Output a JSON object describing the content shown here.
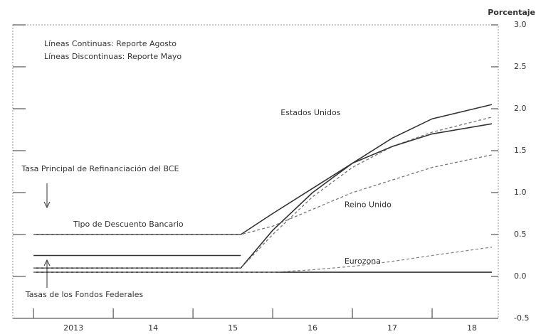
{
  "chart_data": {
    "type": "line",
    "axis_label": "Porcentaje",
    "notes": [
      "Líneas Continuas: Reporte Agosto",
      "Líneas Discontinuas: Reporte Mayo"
    ],
    "annotations": [
      {
        "text": "Estados Unidos",
        "x": 2016.1,
        "y": 1.95
      },
      {
        "text": "Reino Unido",
        "x": 2016.9,
        "y": 0.85
      },
      {
        "text": "Eurozona",
        "x": 2016.9,
        "y": 0.18
      },
      {
        "text": "Tasa Principal de Refinanciación del BCE",
        "x": 2012.85,
        "y": 1.28
      },
      {
        "text": "Tipo de Descuento Bancario",
        "x": 2013.5,
        "y": 0.62
      },
      {
        "text": "Tasas de los Fondos Federales",
        "x": 2012.9,
        "y": -0.22
      }
    ],
    "x": [
      2013,
      2015.6,
      2016,
      2016.5,
      2017,
      2017.5,
      2018,
      2018.75
    ],
    "series": [
      {
        "style": "solid",
        "color": "#333333",
        "values": [
          0.1,
          0.1,
          0.55,
          1.0,
          1.35,
          1.65,
          1.88,
          2.05
        ]
      },
      {
        "style": "dashed",
        "color": "#777777",
        "values": [
          0.1,
          0.1,
          0.5,
          0.95,
          1.3,
          1.55,
          1.72,
          1.9
        ]
      },
      {
        "style": "solid",
        "color": "#333333",
        "values": [
          0.5,
          0.5,
          0.75,
          1.05,
          1.35,
          1.55,
          1.7,
          1.82
        ]
      },
      {
        "style": "dashed",
        "color": "#777777",
        "values": [
          0.5,
          0.5,
          0.6,
          0.8,
          1.0,
          1.15,
          1.3,
          1.45
        ]
      },
      {
        "style": "solid",
        "color": "#333333",
        "values": [
          0.25,
          0.25,
          null,
          null,
          null,
          null,
          null,
          null
        ]
      },
      {
        "style": "solid",
        "color": "#333333",
        "values": [
          0.05,
          0.05,
          0.05,
          0.05,
          0.05,
          0.05,
          0.05,
          0.05
        ]
      },
      {
        "style": "dashed",
        "color": "#888888",
        "values": [
          0.05,
          0.05,
          0.05,
          0.08,
          0.12,
          0.18,
          0.25,
          0.35
        ]
      }
    ],
    "xlim": [
      2012.74,
      2018.83
    ],
    "xticks": [
      {
        "value": 2013.5,
        "label": "2013"
      },
      {
        "value": 2014.5,
        "label": "14"
      },
      {
        "value": 2015.5,
        "label": "15"
      },
      {
        "value": 2016.5,
        "label": "16"
      },
      {
        "value": 2017.5,
        "label": "17"
      },
      {
        "value": 2018.5,
        "label": "18"
      }
    ],
    "ylim": [
      -0.5,
      3.0
    ],
    "yticks": [
      -0.5,
      {
        "value": 0,
        "label": "0.0"
      },
      0.5,
      {
        "value": 1,
        "label": "1.0"
      },
      1.5,
      {
        "value": 2,
        "label": "2.0"
      },
      2.5,
      {
        "value": 3,
        "label": "3.0"
      }
    ]
  }
}
